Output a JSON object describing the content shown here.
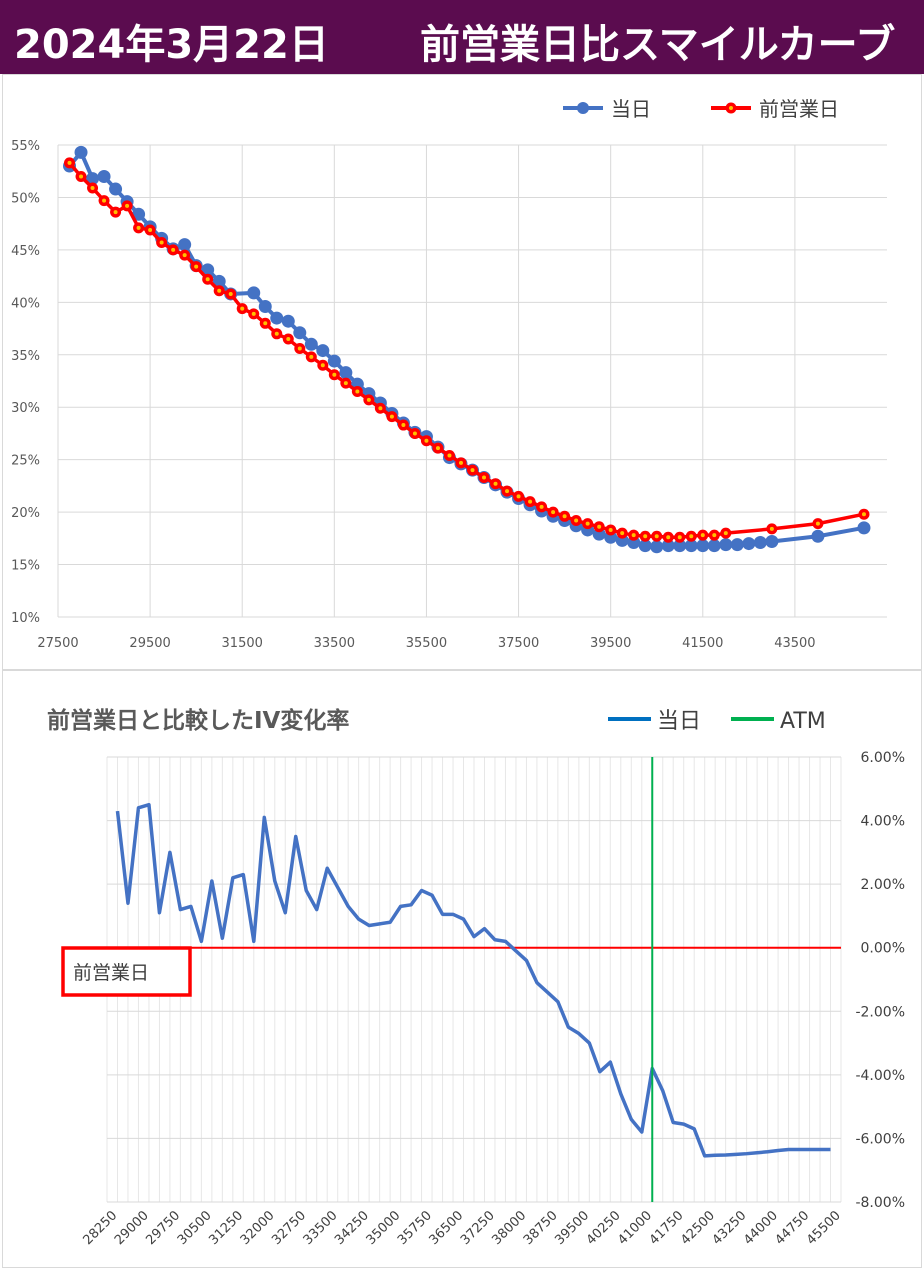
{
  "header": {
    "date": "2024年3月22日",
    "title": "前営業日比スマイルカーブ"
  },
  "colors": {
    "header_bg": "#5b0c4f",
    "today": "#4472c4",
    "prev": "#ff0000",
    "atm": "#00b050",
    "ref_line": "#ff0000"
  },
  "chart_data": [
    {
      "type": "line",
      "title": "",
      "xlim": [
        27500,
        45500
      ],
      "ylim": [
        0.1,
        0.55
      ],
      "x_ticks": [
        27500,
        29500,
        31500,
        33500,
        35500,
        37500,
        39500,
        41500,
        43500
      ],
      "y_ticks": [
        0.1,
        0.15,
        0.2,
        0.25,
        0.3,
        0.35,
        0.4,
        0.45,
        0.5,
        0.55
      ],
      "x_tick_labels": [
        "27500",
        "29500",
        "31500",
        "33500",
        "35500",
        "37500",
        "39500",
        "41500",
        "43500"
      ],
      "y_tick_labels": [
        "10%",
        "15%",
        "20%",
        "25%",
        "30%",
        "35%",
        "40%",
        "45%",
        "50%",
        "55%"
      ],
      "grid": true,
      "legend_position": "top-right",
      "series": [
        {
          "name": "当日",
          "x": [
            27750,
            28000,
            28250,
            28500,
            28750,
            29000,
            29250,
            29500,
            29750,
            30000,
            30250,
            30500,
            30750,
            31000,
            31250,
            31750,
            32000,
            32250,
            32500,
            32750,
            33000,
            33250,
            33500,
            33750,
            34000,
            34250,
            34500,
            34750,
            35000,
            35250,
            35500,
            35750,
            36000,
            36250,
            36500,
            36750,
            37000,
            37250,
            37500,
            37750,
            38000,
            38250,
            38500,
            38750,
            39000,
            39250,
            39500,
            39750,
            40000,
            40250,
            40500,
            40750,
            41000,
            41250,
            41500,
            41750,
            42000,
            42250,
            42500,
            42750,
            43000,
            44000,
            45000
          ],
          "values": [
            0.53,
            0.543,
            0.518,
            0.52,
            0.508,
            0.496,
            0.484,
            0.472,
            0.461,
            0.451,
            0.455,
            0.435,
            0.431,
            0.42,
            0.408,
            0.409,
            0.396,
            0.385,
            0.382,
            0.371,
            0.36,
            0.354,
            0.344,
            0.333,
            0.322,
            0.313,
            0.304,
            0.294,
            0.285,
            0.276,
            0.272,
            0.262,
            0.252,
            0.246,
            0.24,
            0.233,
            0.226,
            0.219,
            0.213,
            0.207,
            0.201,
            0.196,
            0.192,
            0.187,
            0.183,
            0.179,
            0.176,
            0.173,
            0.171,
            0.168,
            0.167,
            0.168,
            0.168,
            0.168,
            0.168,
            0.168,
            0.169,
            0.169,
            0.17,
            0.171,
            0.172,
            0.177,
            0.185
          ]
        },
        {
          "name": "前営業日",
          "x": [
            27750,
            28000,
            28250,
            28500,
            28750,
            29000,
            29250,
            29500,
            29750,
            30000,
            30250,
            30500,
            30750,
            31000,
            31250,
            31500,
            31750,
            32000,
            32250,
            32500,
            32750,
            33000,
            33250,
            33500,
            33750,
            34000,
            34250,
            34500,
            34750,
            35000,
            35250,
            35500,
            35750,
            36000,
            36250,
            36500,
            36750,
            37000,
            37250,
            37500,
            37750,
            38000,
            38250,
            38500,
            38750,
            39000,
            39250,
            39500,
            39750,
            40000,
            40250,
            40500,
            40750,
            41000,
            41250,
            41500,
            41750,
            42000,
            43000,
            44000,
            45000
          ],
          "values": [
            0.533,
            0.52,
            0.509,
            0.497,
            0.486,
            0.492,
            0.471,
            0.469,
            0.457,
            0.45,
            0.445,
            0.434,
            0.422,
            0.411,
            0.408,
            0.394,
            0.389,
            0.38,
            0.37,
            0.365,
            0.356,
            0.348,
            0.34,
            0.331,
            0.323,
            0.315,
            0.307,
            0.299,
            0.291,
            0.283,
            0.275,
            0.268,
            0.261,
            0.254,
            0.247,
            0.24,
            0.233,
            0.227,
            0.22,
            0.215,
            0.21,
            0.205,
            0.2,
            0.196,
            0.192,
            0.189,
            0.186,
            0.183,
            0.18,
            0.178,
            0.177,
            0.177,
            0.176,
            0.176,
            0.177,
            0.178,
            0.178,
            0.18,
            0.184,
            0.189,
            0.198
          ]
        }
      ]
    },
    {
      "type": "line",
      "title": "前営業日と比較したIV変化率",
      "xlim": [
        28000,
        45500
      ],
      "ylim": [
        -0.08,
        0.06
      ],
      "x_ticks": [
        28250,
        29000,
        29750,
        30500,
        31250,
        32000,
        32750,
        33500,
        34250,
        35000,
        35750,
        36500,
        37250,
        38000,
        38750,
        39500,
        40250,
        41000,
        41750,
        42500,
        43250,
        44000,
        44750,
        45500
      ],
      "x_tick_labels": [
        "28250",
        "29000",
        "29750",
        "30500",
        "31250",
        "32000",
        "32750",
        "33500",
        "34250",
        "35000",
        "35750",
        "36500",
        "37250",
        "38000",
        "38750",
        "39500",
        "40250",
        "41000",
        "41750",
        "42500",
        "43250",
        "44000",
        "44750",
        "45500"
      ],
      "y_ticks": [
        0.06,
        0.04,
        0.02,
        0.0,
        -0.02,
        -0.04,
        -0.06,
        -0.08
      ],
      "y_tick_labels": [
        "6.00%",
        "4.00%",
        "2.00%",
        "0.00%",
        "-2.00%",
        "-4.00%",
        "-6.00%",
        "-8.00%"
      ],
      "y_axis_position": "right",
      "grid": true,
      "legend_position": "top-right",
      "ref_label": "前営業日",
      "atm_x": 41000,
      "series": [
        {
          "name": "当日",
          "x": [
            28250,
            28500,
            28750,
            29000,
            29250,
            29500,
            29750,
            30000,
            30250,
            30500,
            30750,
            31000,
            31250,
            31500,
            31750,
            32000,
            32250,
            32500,
            32750,
            33000,
            33250,
            33500,
            33750,
            34000,
            34250,
            34500,
            34750,
            35000,
            35250,
            35500,
            35750,
            36000,
            36250,
            36500,
            36750,
            37000,
            37250,
            37500,
            37750,
            38000,
            38250,
            38500,
            38750,
            39000,
            39250,
            39500,
            39750,
            40000,
            40250,
            40500,
            40750,
            41000,
            41250,
            41500,
            41750,
            42000,
            42250,
            42500,
            42750,
            43000,
            43250,
            43500,
            43750,
            44000,
            44250,
            44500,
            44750,
            45000,
            45250
          ],
          "values": [
            0.043,
            0.014,
            0.044,
            0.045,
            0.011,
            0.03,
            0.012,
            0.013,
            0.002,
            0.021,
            0.003,
            0.022,
            0.023,
            0.002,
            0.041,
            0.021,
            0.011,
            0.035,
            0.018,
            0.012,
            0.025,
            0.019,
            0.013,
            0.009,
            0.007,
            0.0075,
            0.008,
            0.013,
            0.0135,
            0.018,
            0.0165,
            0.0105,
            0.0105,
            0.009,
            0.0035,
            0.006,
            0.0025,
            0.002,
            -0.001,
            -0.004,
            -0.011,
            -0.014,
            -0.017,
            -0.025,
            -0.027,
            -0.03,
            -0.039,
            -0.036,
            -0.046,
            -0.054,
            -0.058,
            -0.038,
            -0.045,
            -0.055,
            -0.0555,
            -0.057,
            -0.0655,
            -0.0653,
            -0.0652,
            -0.065,
            -0.0648,
            -0.0645,
            -0.0642,
            -0.0638,
            -0.0635,
            -0.0635,
            -0.0635,
            -0.0635,
            -0.0635
          ]
        },
        {
          "name": "ATM"
        }
      ]
    }
  ]
}
